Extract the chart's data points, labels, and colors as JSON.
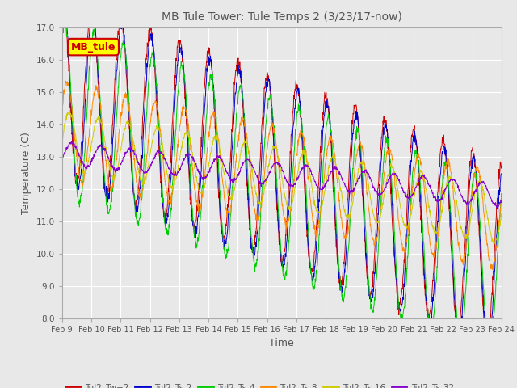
{
  "title": "MB Tule Tower: Tule Temps 2 (3/23/17-now)",
  "xlabel": "Time",
  "ylabel": "Temperature (C)",
  "ylim": [
    8.0,
    17.0
  ],
  "yticks": [
    8.0,
    9.0,
    10.0,
    11.0,
    12.0,
    13.0,
    14.0,
    15.0,
    16.0,
    17.0
  ],
  "xtick_labels": [
    "Feb 9",
    "Feb 10",
    "Feb 11",
    "Feb 12",
    "Feb 13",
    "Feb 14",
    "Feb 15",
    "Feb 16",
    "Feb 17",
    "Feb 18",
    "Feb 19",
    "Feb 20",
    "Feb 21",
    "Feb 22",
    "Feb 23",
    "Feb 24"
  ],
  "legend_box_label": "MB_tule",
  "legend_box_facecolor": "#FFFF00",
  "legend_box_edgecolor": "#CC0000",
  "legend_box_textcolor": "#CC0000",
  "series": [
    {
      "label": "Tul2_Tw+2",
      "color": "#CC0000"
    },
    {
      "label": "Tul2_Ts-2",
      "color": "#0000CC"
    },
    {
      "label": "Tul2_Ts-4",
      "color": "#00CC00"
    },
    {
      "label": "Tul2_Ts-8",
      "color": "#FF8800"
    },
    {
      "label": "Tul2_Ts-16",
      "color": "#CCCC00"
    },
    {
      "label": "Tul2_Ts-32",
      "color": "#8800CC"
    }
  ],
  "fig_bg_color": "#E8E8E8",
  "plot_bg_color": "#E8E8E8",
  "grid_color": "#FFFFFF",
  "title_color": "#555555",
  "tick_label_color": "#555555"
}
